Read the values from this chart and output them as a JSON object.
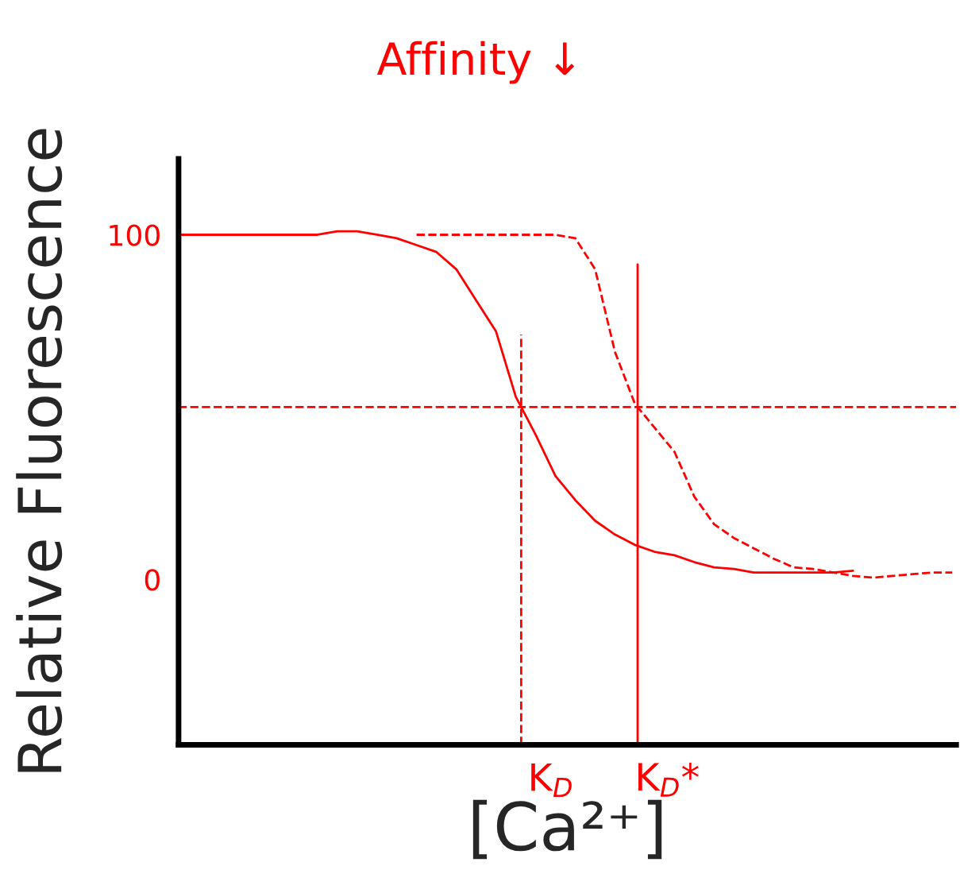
{
  "chart_data": {
    "type": "line",
    "xlabel": "[Ca²⁺]",
    "ylabel": "Relative Fluorescence",
    "categories": [
      null,
      null,
      null,
      null,
      null,
      null,
      null,
      null,
      null,
      null,
      null,
      null,
      null,
      null,
      null,
      null,
      null,
      null,
      null,
      null,
      null,
      null,
      null,
      null,
      null,
      null,
      null,
      null,
      null,
      null,
      null,
      null,
      null,
      null,
      null,
      null,
      null,
      null,
      null,
      null
    ],
    "series": [
      {
        "color": "#ff0000",
        "line_style": "solid",
        "values": [
          100,
          100,
          100,
          100,
          100,
          100,
          100,
          100,
          101,
          101,
          100,
          99,
          97,
          95,
          90,
          81,
          72,
          53,
          42,
          30,
          23,
          17,
          13,
          10,
          8,
          7,
          5,
          3.5,
          3,
          2,
          2,
          2,
          2,
          2,
          2.5,
          null,
          null,
          null,
          null,
          null
        ]
      },
      {
        "color": "#ff0000",
        "line_style": "dashed",
        "values": [
          null,
          null,
          null,
          null,
          null,
          null,
          null,
          null,
          null,
          null,
          null,
          null,
          100,
          100,
          100,
          100,
          100,
          100,
          100,
          100,
          99,
          90,
          66,
          51,
          44,
          37,
          24,
          16,
          12,
          9,
          6,
          3.5,
          3,
          2,
          1,
          0.5,
          1,
          1.5,
          2,
          2
        ]
      }
    ],
    "ylim": [
      -48,
      122
    ],
    "yticks": [
      0,
      100
    ],
    "tick_labels": "y",
    "marker": "none",
    "grid": false,
    "legend": false,
    "ref_lines": [
      {
        "axis": "y",
        "value": 50,
        "color": "#ff0000",
        "line_style": "dashed"
      }
    ],
    "annotations": [
      "Affinity ↓",
      "K$_{D}$",
      "K$_{D}$*"
    ]
  }
}
